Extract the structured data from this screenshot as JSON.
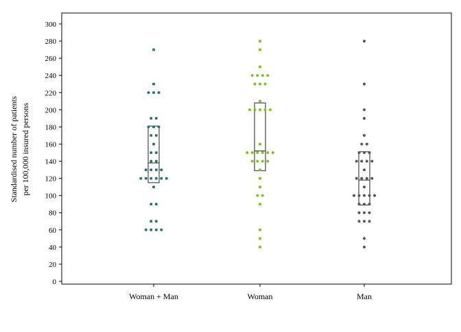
{
  "chart_data": {
    "type": "scatter",
    "subtype": "dot plot with box",
    "title": "",
    "xlabel": "",
    "ylabel": [
      "Standardised number of patients",
      "per 100,000 insured persons"
    ],
    "ylim": [
      0,
      300
    ],
    "yticks": [
      0,
      20,
      40,
      60,
      80,
      100,
      120,
      140,
      160,
      180,
      200,
      220,
      240,
      260,
      280,
      300
    ],
    "grid": false,
    "legend": "none",
    "categories": [
      "Woman + Man",
      "Woman",
      "Man"
    ],
    "series": [
      {
        "category": "Woman + Man",
        "color": "#2a7070",
        "values": [
          270,
          230,
          220,
          220,
          220,
          190,
          190,
          180,
          180,
          180,
          170,
          170,
          160,
          150,
          150,
          140,
          140,
          130,
          130,
          130,
          130,
          120,
          120,
          120,
          120,
          120,
          120,
          110,
          90,
          90,
          70,
          70,
          60,
          60,
          60,
          60
        ],
        "box": {
          "q1": 115,
          "median": 138,
          "q3": 181
        }
      },
      {
        "category": "Woman",
        "color": "#7ac21c",
        "values": [
          280,
          270,
          250,
          240,
          240,
          240,
          240,
          230,
          230,
          230,
          210,
          200,
          200,
          200,
          200,
          200,
          160,
          150,
          150,
          150,
          150,
          150,
          150,
          140,
          140,
          140,
          140,
          130,
          120,
          110,
          100,
          100,
          90,
          60,
          50,
          40
        ],
        "box": {
          "q1": 129,
          "median": 152,
          "q3": 208
        }
      },
      {
        "category": "Man",
        "color": "#555555",
        "values": [
          280,
          230,
          200,
          190,
          170,
          160,
          160,
          150,
          150,
          150,
          140,
          140,
          140,
          140,
          130,
          120,
          120,
          120,
          120,
          110,
          100,
          100,
          100,
          100,
          100,
          90,
          90,
          90,
          80,
          80,
          80,
          70,
          70,
          70,
          50,
          40
        ],
        "box": {
          "q1": 89,
          "median": 118,
          "q3": 151
        }
      }
    ]
  }
}
